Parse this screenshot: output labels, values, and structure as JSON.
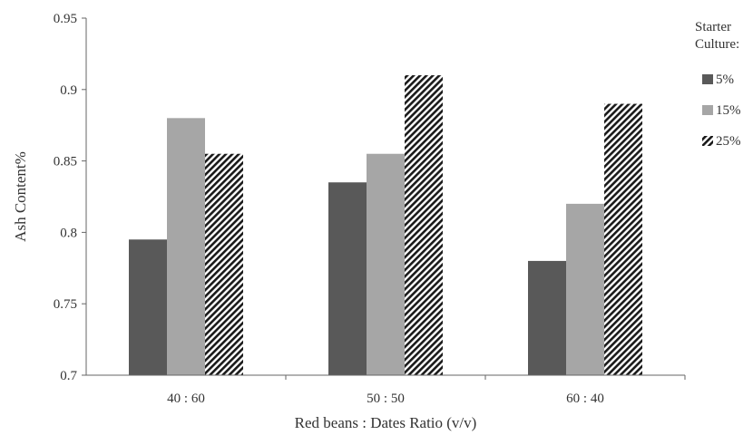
{
  "chart_data": {
    "type": "bar",
    "title": "",
    "xlabel": "Red beans : Dates Ratio (v/v)",
    "ylabel": "Ash Content%",
    "categories": [
      "40 : 60",
      "50 : 50",
      "60 : 40"
    ],
    "ylim": [
      0.7,
      0.95
    ],
    "yticks": [
      "0.7",
      "0.75",
      "0.8",
      "0.85",
      "0.9",
      "0.95"
    ],
    "legend": {
      "title_lines": [
        "Starter",
        "Culture:"
      ],
      "placement": "right"
    },
    "series": [
      {
        "name": "5%",
        "values": [
          0.795,
          0.835,
          0.78
        ],
        "color": "#595959",
        "pattern": "solid"
      },
      {
        "name": "15%",
        "values": [
          0.88,
          0.855,
          0.82
        ],
        "color": "#a6a6a6",
        "pattern": "solid"
      },
      {
        "name": "25%",
        "values": [
          0.855,
          0.91,
          0.89
        ],
        "color": "#1a1a1a",
        "pattern": "diagonal-stripes"
      }
    ],
    "grid": false
  }
}
